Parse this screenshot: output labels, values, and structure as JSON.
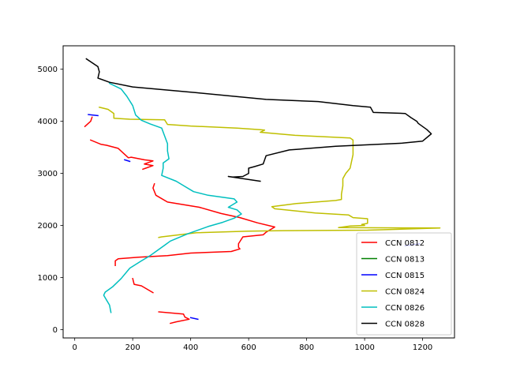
{
  "chart_data": {
    "type": "line",
    "title": "",
    "xlabel": "",
    "ylabel": "",
    "xlim": [
      -40,
      1310
    ],
    "ylim": [
      -160,
      5450
    ],
    "xticks": [
      0,
      200,
      400,
      600,
      800,
      1000,
      1200
    ],
    "yticks": [
      0,
      1000,
      2000,
      3000,
      4000,
      5000
    ],
    "grid": false,
    "legend_position": "lower-right",
    "series": [
      {
        "name": "CCN 0812",
        "color": "#ff0000",
        "segments": [
          [
            [
              35,
              3900
            ],
            [
              55,
              4000
            ],
            [
              60,
              4080
            ]
          ],
          [
            [
              55,
              3640
            ],
            [
              90,
              3560
            ],
            [
              110,
              3540
            ],
            [
              150,
              3480
            ],
            [
              185,
              3300
            ],
            [
              195,
              3310
            ],
            [
              240,
              3260
            ],
            [
              270,
              3240
            ],
            [
              240,
              3180
            ],
            [
              270,
              3150
            ],
            [
              245,
              3100
            ],
            [
              235,
              3080
            ]
          ],
          [
            [
              275,
              2800
            ],
            [
              270,
              2720
            ],
            [
              280,
              2580
            ],
            [
              320,
              2450
            ],
            [
              430,
              2350
            ],
            [
              505,
              2230
            ],
            [
              570,
              2150
            ],
            [
              630,
              2050
            ],
            [
              690,
              1970
            ],
            [
              660,
              1870
            ],
            [
              650,
              1820
            ],
            [
              580,
              1780
            ],
            [
              565,
              1650
            ],
            [
              565,
              1580
            ],
            [
              570,
              1550
            ],
            [
              540,
              1500
            ],
            [
              400,
              1470
            ],
            [
              320,
              1420
            ],
            [
              220,
              1390
            ],
            [
              150,
              1360
            ],
            [
              140,
              1320
            ],
            [
              140,
              1230
            ]
          ],
          [
            [
              200,
              980
            ],
            [
              205,
              870
            ],
            [
              230,
              840
            ],
            [
              270,
              710
            ]
          ],
          [
            [
              290,
              340
            ],
            [
              375,
              300
            ],
            [
              380,
              240
            ],
            [
              395,
              200
            ],
            [
              350,
              150
            ],
            [
              330,
              120
            ]
          ]
        ]
      },
      {
        "name": "CCN 0813",
        "color": "#008000",
        "segments": []
      },
      {
        "name": "CCN 0815",
        "color": "#0000ff",
        "segments": [
          [
            [
              47,
              4130
            ],
            [
              80,
              4110
            ]
          ],
          [
            [
              172,
              3260
            ],
            [
              190,
              3230
            ]
          ],
          [
            [
              400,
              230
            ],
            [
              425,
              200
            ]
          ],
          [
            [
              1140,
              1610
            ],
            [
              1190,
              1650
            ]
          ]
        ]
      },
      {
        "name": "CCN 0824",
        "color": "#bfbf00",
        "segments": [
          [
            [
              85,
              4270
            ],
            [
              115,
              4230
            ],
            [
              135,
              4150
            ],
            [
              135,
              4060
            ],
            [
              190,
              4040
            ],
            [
              310,
              4030
            ],
            [
              320,
              3940
            ],
            [
              400,
              3910
            ],
            [
              560,
              3870
            ],
            [
              640,
              3840
            ],
            [
              655,
              3830
            ],
            [
              640,
              3790
            ],
            [
              760,
              3730
            ],
            [
              950,
              3680
            ],
            [
              960,
              3640
            ],
            [
              960,
              3560
            ],
            [
              960,
              3360
            ],
            [
              950,
              3100
            ],
            [
              935,
              3000
            ],
            [
              925,
              2900
            ],
            [
              925,
              2760
            ],
            [
              920,
              2600
            ],
            [
              920,
              2500
            ],
            [
              900,
              2480
            ],
            [
              765,
              2420
            ],
            [
              680,
              2360
            ],
            [
              690,
              2320
            ],
            [
              830,
              2240
            ],
            [
              945,
              2200
            ],
            [
              960,
              2150
            ],
            [
              1010,
              2130
            ],
            [
              1010,
              2040
            ],
            [
              990,
              2020
            ],
            [
              1000,
              2000
            ],
            [
              950,
              1990
            ],
            [
              910,
              1960
            ],
            [
              1260,
              1950
            ],
            [
              1010,
              1910
            ],
            [
              720,
              1900
            ],
            [
              600,
              1890
            ],
            [
              420,
              1860
            ],
            [
              300,
              1780
            ],
            [
              290,
              1770
            ]
          ]
        ]
      },
      {
        "name": "CCN 0826",
        "color": "#00bfbf",
        "segments": [
          [
            [
              120,
              4730
            ],
            [
              160,
              4620
            ],
            [
              180,
              4480
            ],
            [
              200,
              4300
            ],
            [
              210,
              4120
            ],
            [
              230,
              4020
            ],
            [
              260,
              3950
            ],
            [
              300,
              3870
            ],
            [
              310,
              3720
            ],
            [
              320,
              3570
            ],
            [
              320,
              3430
            ],
            [
              325,
              3280
            ],
            [
              305,
              3200
            ],
            [
              305,
              3100
            ],
            [
              300,
              2960
            ],
            [
              350,
              2850
            ],
            [
              380,
              2750
            ],
            [
              410,
              2650
            ],
            [
              460,
              2580
            ],
            [
              550,
              2510
            ],
            [
              560,
              2450
            ],
            [
              530,
              2350
            ],
            [
              560,
              2300
            ],
            [
              575,
              2220
            ],
            [
              550,
              2140
            ],
            [
              510,
              2060
            ],
            [
              460,
              1980
            ],
            [
              390,
              1840
            ],
            [
              330,
              1700
            ],
            [
              310,
              1620
            ],
            [
              280,
              1500
            ],
            [
              260,
              1420
            ],
            [
              230,
              1320
            ],
            [
              190,
              1180
            ],
            [
              160,
              980
            ],
            [
              130,
              820
            ],
            [
              105,
              720
            ],
            [
              100,
              660
            ],
            [
              120,
              470
            ],
            [
              125,
              330
            ]
          ]
        ]
      },
      {
        "name": "CCN 0828",
        "color": "#000000",
        "segments": [
          [
            [
              40,
              5200
            ],
            [
              80,
              5050
            ],
            [
              85,
              4950
            ],
            [
              80,
              4830
            ],
            [
              120,
              4750
            ],
            [
              200,
              4660
            ],
            [
              420,
              4550
            ],
            [
              660,
              4420
            ],
            [
              840,
              4380
            ],
            [
              960,
              4300
            ],
            [
              1020,
              4270
            ],
            [
              1030,
              4170
            ],
            [
              1140,
              4150
            ],
            [
              1160,
              4070
            ],
            [
              1180,
              4000
            ],
            [
              1185,
              3960
            ],
            [
              1215,
              3840
            ],
            [
              1230,
              3760
            ],
            [
              1200,
              3620
            ],
            [
              1130,
              3580
            ],
            [
              900,
              3520
            ],
            [
              740,
              3450
            ],
            [
              660,
              3340
            ],
            [
              650,
              3180
            ],
            [
              620,
              3130
            ],
            [
              600,
              3100
            ],
            [
              600,
              3000
            ],
            [
              580,
              2940
            ],
            [
              545,
              2930
            ],
            [
              530,
              2940
            ],
            [
              640,
              2850
            ]
          ]
        ]
      }
    ]
  }
}
